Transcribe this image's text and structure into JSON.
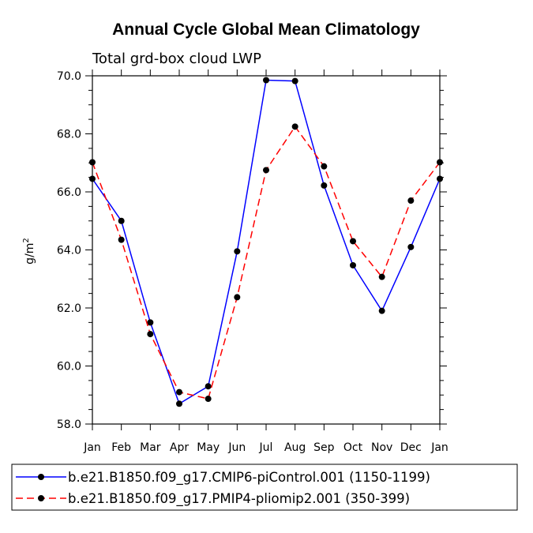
{
  "chart_data": {
    "type": "line",
    "title": "Annual Cycle Global Mean Climatology",
    "subtitle": "Total grd-box cloud LWP",
    "ylabel": "g/m",
    "ylabel_superscript": "2",
    "xlabel": "",
    "categories": [
      "Jan",
      "Feb",
      "Mar",
      "Apr",
      "May",
      "Jun",
      "Jul",
      "Aug",
      "Sep",
      "Oct",
      "Nov",
      "Dec",
      "Jan"
    ],
    "ylim": [
      58.0,
      70.0
    ],
    "yticks": [
      58.0,
      60.0,
      62.0,
      64.0,
      66.0,
      68.0,
      70.0
    ],
    "ytick_labels": [
      "58.0",
      "60.0",
      "62.0",
      "64.0",
      "66.0",
      "68.0",
      "70.0"
    ],
    "series": [
      {
        "name": "b.e21.B1850.f09_g17.CMIP6-piControl.001 (1150-1199)",
        "color": "#0000ff",
        "dash": "solid",
        "values": [
          66.45,
          65.0,
          61.5,
          58.7,
          59.3,
          63.95,
          69.85,
          69.82,
          66.22,
          63.47,
          61.9,
          64.1,
          66.45
        ]
      },
      {
        "name": "b.e21.B1850.f09_g17.PMIP4-pliomip2.001 (350-399)",
        "color": "#ff0000",
        "dash": "dashed",
        "values": [
          67.02,
          64.35,
          61.1,
          59.1,
          58.87,
          62.37,
          66.75,
          68.25,
          66.88,
          64.3,
          63.07,
          65.7,
          67.02
        ]
      }
    ],
    "legend_position": "bottom"
  }
}
